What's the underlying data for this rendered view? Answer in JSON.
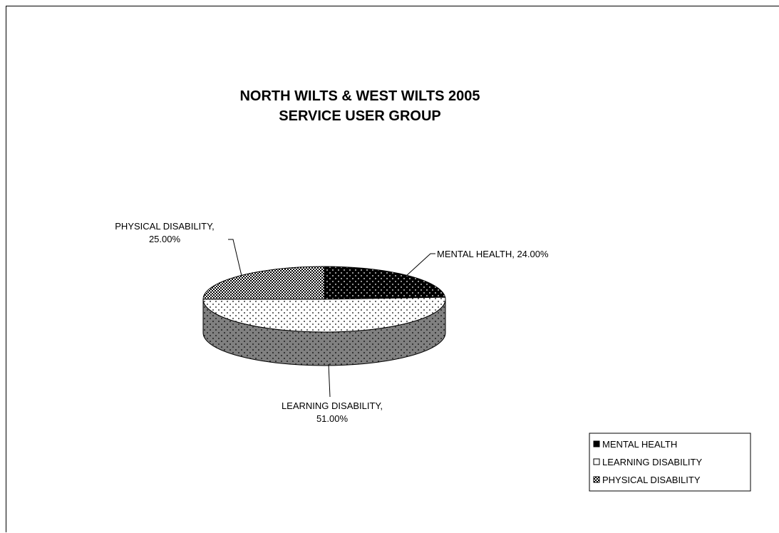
{
  "chart_data": {
    "type": "pie",
    "title": [
      "NORTH WILTS & WEST WILTS 2005",
      "SERVICE USER GROUP"
    ],
    "slices": [
      {
        "name": "MENTAL HEALTH",
        "value": 24.0,
        "label": [
          "MENTAL HEALTH, 24.00%"
        ],
        "pattern": "black-dots"
      },
      {
        "name": "LEARNING DISABILITY",
        "value": 51.0,
        "label": [
          "LEARNING DISABILITY,",
          "51.00%"
        ],
        "pattern": "white-dots"
      },
      {
        "name": "PHYSICAL DISABILITY",
        "value": 25.0,
        "label": [
          "PHYSICAL DISABILITY,",
          "25.00%"
        ],
        "pattern": "checker"
      }
    ],
    "legend": {
      "position": "bottom-right",
      "entries": [
        "MENTAL HEALTH",
        "LEARNING DISABILITY",
        "PHYSICAL DISABILITY"
      ]
    },
    "style": "3d-pie"
  }
}
